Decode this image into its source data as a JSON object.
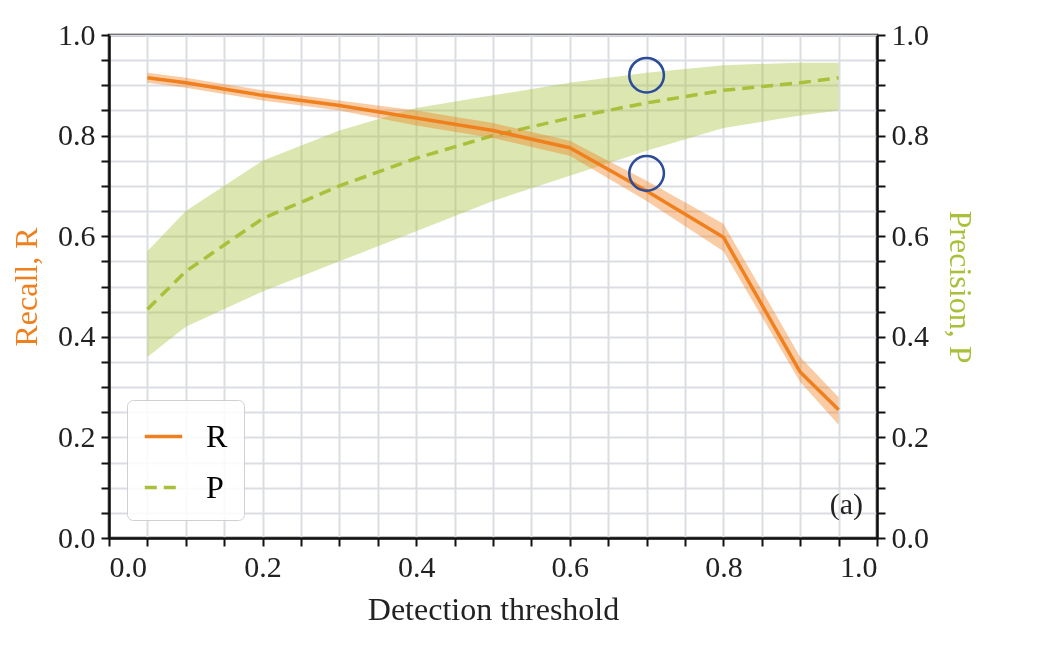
{
  "chart_data": {
    "type": "line",
    "xlabel": "Detection threshold",
    "ylabel": "Recall, R",
    "y2label": "Precision, P",
    "x": [
      0.05,
      0.1,
      0.2,
      0.3,
      0.4,
      0.5,
      0.6,
      0.7,
      0.8,
      0.9,
      0.95
    ],
    "series": [
      {
        "name": "R",
        "color": "#f07f1e",
        "line_style": "solid",
        "values": [
          0.915,
          0.905,
          0.88,
          0.86,
          0.835,
          0.81,
          0.776,
          0.69,
          0.598,
          0.33,
          0.255
        ],
        "lower": [
          0.905,
          0.895,
          0.87,
          0.85,
          0.82,
          0.795,
          0.76,
          0.67,
          0.57,
          0.31,
          0.225
        ],
        "upper": [
          0.925,
          0.915,
          0.89,
          0.87,
          0.85,
          0.825,
          0.79,
          0.71,
          0.625,
          0.36,
          0.28
        ]
      },
      {
        "name": "P",
        "color": "#a8c03a",
        "axis": "y2",
        "line_style": "dashed",
        "values": [
          0.455,
          0.53,
          0.635,
          0.7,
          0.755,
          0.8,
          0.835,
          0.865,
          0.89,
          0.905,
          0.915
        ],
        "lower": [
          0.36,
          0.42,
          0.49,
          0.55,
          0.61,
          0.67,
          0.72,
          0.77,
          0.815,
          0.84,
          0.85
        ],
        "upper": [
          0.57,
          0.65,
          0.75,
          0.81,
          0.855,
          0.88,
          0.905,
          0.925,
          0.94,
          0.945,
          0.945
        ]
      },
      {
        "type": "scatter",
        "color": "#2b4b9b",
        "marker": "circle",
        "x": [
          0.7,
          0.7
        ],
        "values": [
          0.92,
          0.725
        ]
      }
    ],
    "xlim": [
      0,
      1
    ],
    "ylim": [
      0,
      1
    ],
    "y2lim": [
      0,
      1
    ],
    "xticks": [
      {
        "value": 0,
        "label": "0.0"
      },
      {
        "value": 0.05,
        "label": null
      },
      {
        "value": 0.1,
        "label": null
      },
      {
        "value": 0.15,
        "label": null
      },
      0.2,
      {
        "value": 0.25,
        "label": null
      },
      {
        "value": 0.3,
        "label": null
      },
      {
        "value": 0.35,
        "label": null
      },
      0.4,
      {
        "value": 0.45,
        "label": null
      },
      {
        "value": 0.5,
        "label": null
      },
      {
        "value": 0.55,
        "label": null
      },
      0.6,
      {
        "value": 0.65,
        "label": null
      },
      {
        "value": 0.7,
        "label": null
      },
      {
        "value": 0.75,
        "label": null
      },
      0.8,
      {
        "value": 0.85,
        "label": null
      },
      {
        "value": 0.9,
        "label": null
      },
      {
        "value": 0.95,
        "label": null
      },
      {
        "value": 1,
        "label": "1.0"
      }
    ],
    "yticks": [
      {
        "value": 0,
        "label": "0.0"
      },
      {
        "value": 0.05,
        "label": null
      },
      {
        "value": 0.1,
        "label": null
      },
      {
        "value": 0.15,
        "label": null
      },
      0.2,
      {
        "value": 0.25,
        "label": null
      },
      {
        "value": 0.3,
        "label": null
      },
      {
        "value": 0.35,
        "label": null
      },
      0.4,
      {
        "value": 0.45,
        "label": null
      },
      {
        "value": 0.5,
        "label": null
      },
      {
        "value": 0.55,
        "label": null
      },
      0.6,
      {
        "value": 0.65,
        "label": null
      },
      {
        "value": 0.7,
        "label": null
      },
      {
        "value": 0.75,
        "label": null
      },
      0.8,
      {
        "value": 0.85,
        "label": null
      },
      {
        "value": 0.9,
        "label": null
      },
      {
        "value": 0.95,
        "label": null
      },
      {
        "value": 1,
        "label": "1.0"
      }
    ],
    "y2ticks": [
      {
        "value": 0,
        "label": "0.0"
      },
      {
        "value": 0.05,
        "label": null
      },
      {
        "value": 0.1,
        "label": null
      },
      {
        "value": 0.15,
        "label": null
      },
      0.2,
      {
        "value": 0.25,
        "label": null
      },
      {
        "value": 0.3,
        "label": null
      },
      {
        "value": 0.35,
        "label": null
      },
      0.4,
      {
        "value": 0.45,
        "label": null
      },
      {
        "value": 0.5,
        "label": null
      },
      {
        "value": 0.55,
        "label": null
      },
      0.6,
      {
        "value": 0.65,
        "label": null
      },
      {
        "value": 0.7,
        "label": null
      },
      {
        "value": 0.75,
        "label": null
      },
      0.8,
      {
        "value": 0.85,
        "label": null
      },
      {
        "value": 0.9,
        "label": null
      },
      {
        "value": 0.95,
        "label": null
      },
      {
        "value": 1,
        "label": "1.0"
      }
    ],
    "grid": true,
    "legend": "bottom left",
    "annotations": [
      "(a)"
    ]
  }
}
